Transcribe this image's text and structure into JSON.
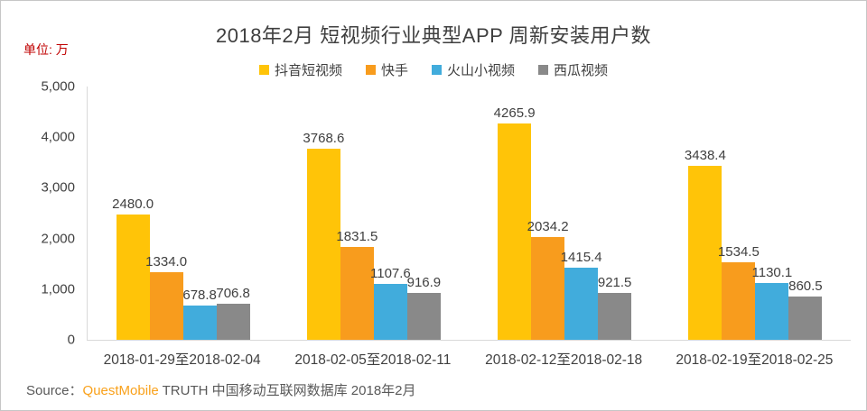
{
  "chart_data": {
    "type": "bar",
    "title": "2018年2月 短视频行业典型APP 周新安装用户数",
    "unit_label": "单位: 万",
    "categories": [
      "2018-01-29至2018-02-04",
      "2018-02-05至2018-02-11",
      "2018-02-12至2018-02-18",
      "2018-02-19至2018-02-25"
    ],
    "series": [
      {
        "name": "抖音短视频",
        "color": "#FFC408",
        "values": [
          2480.0,
          3768.6,
          4265.9,
          3438.4
        ]
      },
      {
        "name": "快手",
        "color": "#F89C1D",
        "values": [
          1334.0,
          1831.5,
          2034.2,
          1534.5
        ]
      },
      {
        "name": "火山小视频",
        "color": "#41ACDC",
        "values": [
          678.8,
          1107.6,
          1415.4,
          1130.1
        ]
      },
      {
        "name": "西瓜视频",
        "color": "#898989",
        "values": [
          706.8,
          916.9,
          921.5,
          860.5
        ]
      }
    ],
    "ylim": [
      0,
      5000
    ],
    "yticks": [
      "0",
      "1,000",
      "2,000",
      "3,000",
      "4,000",
      "5,000"
    ],
    "legend_position": "top-center",
    "grid": false,
    "value_labels": true,
    "xlabel": "",
    "ylabel": ""
  },
  "source": {
    "prefix": "Source：",
    "brand": "QuestMobile",
    "rest": " TRUTH 中国移动互联网数据库 2018年2月"
  },
  "colors": {
    "text": "#404040",
    "unit_label_red": "#C00000",
    "axis_line": "#D9D9D9",
    "brand_orange": "#F9A11B",
    "frame_border": "#C6C6C6"
  }
}
